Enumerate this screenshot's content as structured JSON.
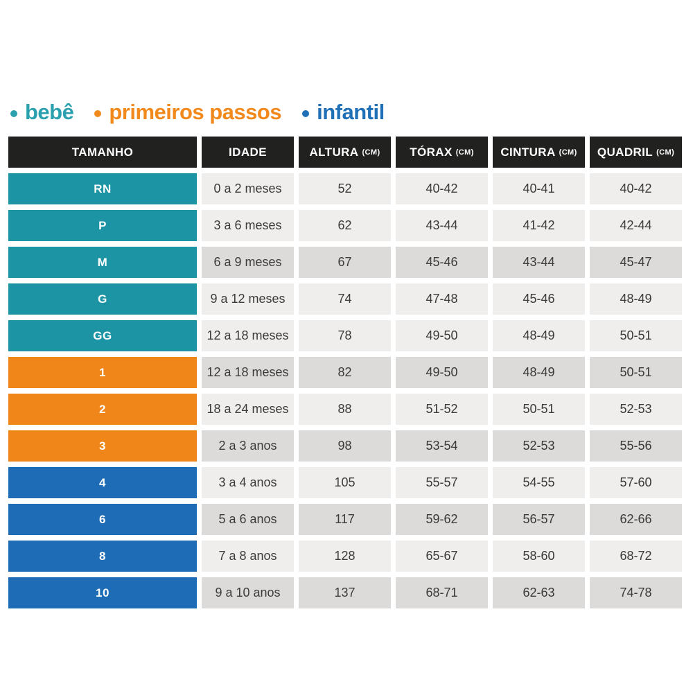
{
  "legend": {
    "items": [
      {
        "key": "bebe",
        "label": "bebê",
        "color": "#2ba0af"
      },
      {
        "key": "primeiros",
        "label": "primeiros passos",
        "color": "#f2891d"
      },
      {
        "key": "infantil",
        "label": "infantil",
        "color": "#1f70b7"
      }
    ]
  },
  "chart_data": {
    "type": "table",
    "columns": [
      {
        "key": "tamanho",
        "label": "TAMANHO",
        "unit": ""
      },
      {
        "key": "idade",
        "label": "IDADE",
        "unit": ""
      },
      {
        "key": "altura",
        "label": "ALTURA",
        "unit": "(CM)"
      },
      {
        "key": "torax",
        "label": "TÓRAX",
        "unit": "(CM)"
      },
      {
        "key": "cintura",
        "label": "CINTURA",
        "unit": "(CM)"
      },
      {
        "key": "quadril",
        "label": "QUADRIL",
        "unit": "(CM)"
      }
    ],
    "rows": [
      {
        "size": "RN",
        "group": "bebe",
        "shade": "light",
        "values": [
          "0 a 2 meses",
          "52",
          "40-42",
          "40-41",
          "40-42"
        ]
      },
      {
        "size": "P",
        "group": "bebe",
        "shade": "light",
        "values": [
          "3 a 6 meses",
          "62",
          "43-44",
          "41-42",
          "42-44"
        ]
      },
      {
        "size": "M",
        "group": "bebe",
        "shade": "dark",
        "values": [
          "6 a 9 meses",
          "67",
          "45-46",
          "43-44",
          "45-47"
        ]
      },
      {
        "size": "G",
        "group": "bebe",
        "shade": "light",
        "values": [
          "9 a 12 meses",
          "74",
          "47-48",
          "45-46",
          "48-49"
        ]
      },
      {
        "size": "GG",
        "group": "bebe",
        "shade": "light",
        "values": [
          "12 a 18 meses",
          "78",
          "49-50",
          "48-49",
          "50-51"
        ]
      },
      {
        "size": "1",
        "group": "primeiros",
        "shade": "dark",
        "values": [
          "12 a 18 meses",
          "82",
          "49-50",
          "48-49",
          "50-51"
        ]
      },
      {
        "size": "2",
        "group": "primeiros",
        "shade": "light",
        "values": [
          "18 a 24 meses",
          "88",
          "51-52",
          "50-51",
          "52-53"
        ]
      },
      {
        "size": "3",
        "group": "primeiros",
        "shade": "dark",
        "values": [
          "2 a 3 anos",
          "98",
          "53-54",
          "52-53",
          "55-56"
        ]
      },
      {
        "size": "4",
        "group": "infantil",
        "shade": "light",
        "values": [
          "3 a 4 anos",
          "105",
          "55-57",
          "54-55",
          "57-60"
        ]
      },
      {
        "size": "6",
        "group": "infantil",
        "shade": "dark",
        "values": [
          "5 a 6 anos",
          "117",
          "59-62",
          "56-57",
          "62-66"
        ]
      },
      {
        "size": "8",
        "group": "infantil",
        "shade": "light",
        "values": [
          "7 a 8 anos",
          "128",
          "65-67",
          "58-60",
          "68-72"
        ]
      },
      {
        "size": "10",
        "group": "infantil",
        "shade": "dark",
        "values": [
          "9 a 10 anos",
          "137",
          "68-71",
          "62-63",
          "74-78"
        ]
      }
    ],
    "groups": {
      "bebê": [
        "RN",
        "P",
        "M",
        "G",
        "GG"
      ],
      "primeiros passos": [
        "1",
        "2",
        "3"
      ],
      "infantil": [
        "4",
        "6",
        "8",
        "10"
      ]
    }
  },
  "colors": {
    "bebe": "#1d94a4",
    "primeiros": "#f08519",
    "infantil": "#1e6cb5",
    "header_bg": "#212120",
    "row_light": "#efeeec",
    "row_dark": "#dcdbd9",
    "data_text": "#3b3b39"
  }
}
